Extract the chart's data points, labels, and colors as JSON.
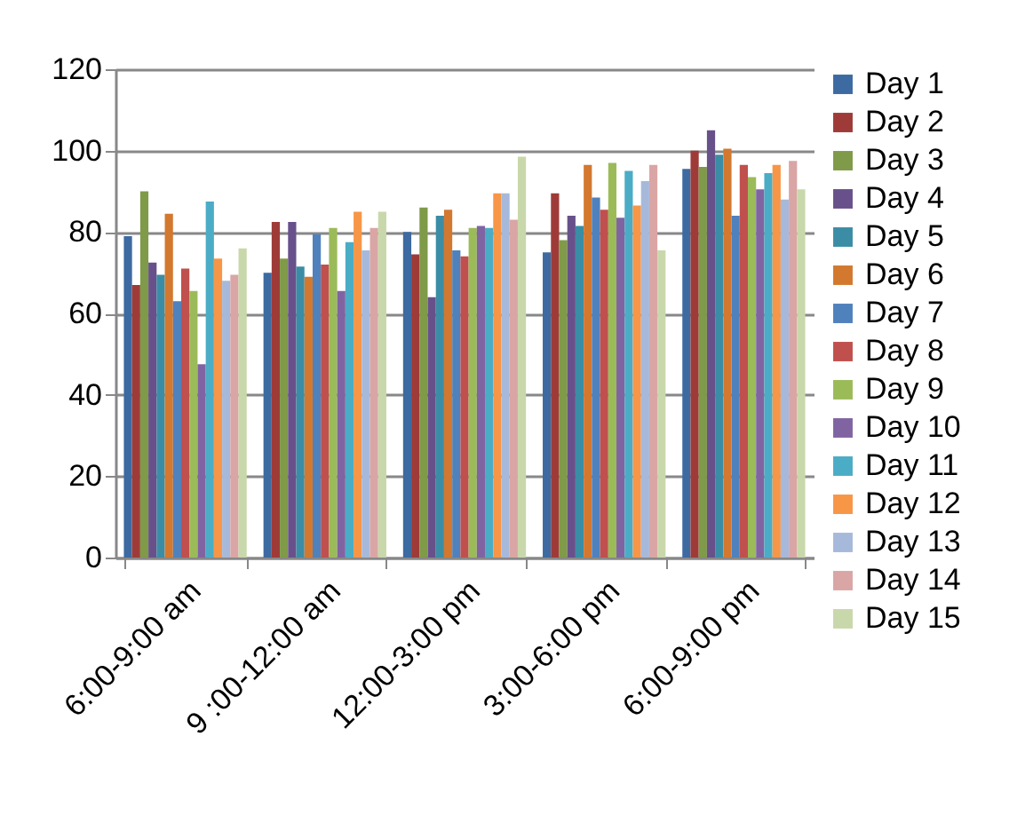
{
  "chart_data": {
    "type": "bar",
    "categories": [
      "6:00-9:00 am",
      "9 :00-12:00 am",
      "12:00-3:00 pm",
      "3:00-6:00 pm",
      "6:00-9:00 pm"
    ],
    "series": [
      {
        "name": "Day 1",
        "color": "#3c6aa1",
        "values": [
          79,
          70,
          80,
          75,
          95.5
        ]
      },
      {
        "name": "Day 2",
        "color": "#9e3b38",
        "values": [
          67,
          82.5,
          74.5,
          89.5,
          100
        ]
      },
      {
        "name": "Day 3",
        "color": "#7f9a48",
        "values": [
          90,
          73.5,
          86,
          78,
          96
        ]
      },
      {
        "name": "Day 4",
        "color": "#68518a",
        "values": [
          72.5,
          82.5,
          64,
          84,
          105
        ]
      },
      {
        "name": "Day 5",
        "color": "#3b8da5",
        "values": [
          69.5,
          71.5,
          84,
          81.5,
          99
        ]
      },
      {
        "name": "Day 6",
        "color": "#d3782f",
        "values": [
          84.5,
          69,
          85.5,
          96.5,
          100.5
        ]
      },
      {
        "name": "Day 7",
        "color": "#4f81bd",
        "values": [
          63,
          79.5,
          75.5,
          88.5,
          84
        ]
      },
      {
        "name": "Day 8",
        "color": "#c0504d",
        "values": [
          71,
          72,
          74,
          85.5,
          96.5
        ]
      },
      {
        "name": "Day 9",
        "color": "#9bbb59",
        "values": [
          65.5,
          81,
          81,
          97,
          93.5
        ]
      },
      {
        "name": "Day 10",
        "color": "#8064a2",
        "values": [
          47.5,
          65.5,
          81.5,
          83.5,
          90.5
        ]
      },
      {
        "name": "Day 11",
        "color": "#4bacc6",
        "values": [
          87.5,
          77.5,
          81,
          95,
          94.5
        ]
      },
      {
        "name": "Day 12",
        "color": "#f79646",
        "values": [
          73.5,
          85,
          89.5,
          86.5,
          96.5
        ]
      },
      {
        "name": "Day 13",
        "color": "#a7b9da",
        "values": [
          68,
          75.5,
          89.5,
          92.5,
          88
        ]
      },
      {
        "name": "Day 14",
        "color": "#d9a6a5",
        "values": [
          69.5,
          81,
          83,
          96.5,
          97.5
        ]
      },
      {
        "name": "Day 15",
        "color": "#c9d8aa",
        "values": [
          76,
          85,
          98.5,
          75.5,
          90.5
        ]
      }
    ],
    "ylim": [
      0,
      120
    ],
    "yticks": [
      0,
      20,
      40,
      60,
      80,
      100,
      120
    ],
    "grid": "y",
    "legend": "right"
  }
}
